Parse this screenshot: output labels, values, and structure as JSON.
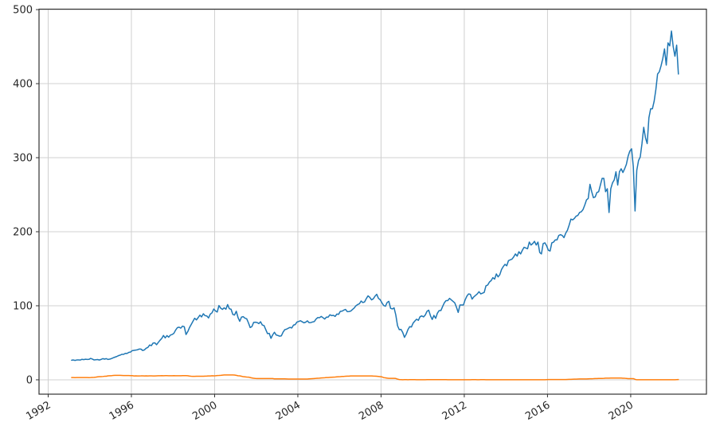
{
  "chart_data": {
    "type": "line",
    "title": "",
    "xlabel": "",
    "ylabel": "",
    "grid": true,
    "legend_position": "none",
    "x_axis": {
      "tick_years": [
        1992,
        1996,
        2000,
        2004,
        2008,
        2012,
        2016,
        2020
      ],
      "tick_labels": [
        "1992",
        "1996",
        "2000",
        "2004",
        "2008",
        "2012",
        "2016",
        "2020"
      ],
      "lim": [
        1991.56,
        2023.64
      ],
      "tick_rotation_deg": 30
    },
    "y_axis": {
      "ticks": [
        0,
        100,
        200,
        300,
        400,
        500
      ],
      "tick_labels": [
        "0",
        "100",
        "200",
        "300",
        "400",
        "500"
      ],
      "lim": [
        -19.4,
        500.6
      ]
    },
    "x_encoding": "values_by_year holds one value per month in order; 1993 starts in February, 2022 ends in April",
    "series": [
      {
        "name": "blue-line",
        "color": "#1f77b4",
        "values_by_year": {
          "1993": [
            26.4,
            26.8,
            26.2,
            26.8,
            26.8,
            26.7,
            27.7,
            27.3,
            27.8,
            27.5,
            27.6
          ],
          "1994": [
            28.9,
            28.0,
            26.8,
            27.1,
            27.4,
            26.7,
            27.5,
            28.6,
            27.9,
            28.6,
            27.5,
            27.9
          ],
          "1995": [
            28.7,
            29.7,
            30.6,
            31.4,
            32.6,
            33.3,
            34.4,
            34.4,
            35.7,
            35.6,
            37.1,
            37.5
          ],
          "1996": [
            39.4,
            39.8,
            40.1,
            40.5,
            41.5,
            41.5,
            39.6,
            40.4,
            42.6,
            43.7,
            47.0,
            46.1
          ],
          "1997": [
            49.6,
            50.0,
            47.4,
            50.4,
            53.4,
            55.9,
            59.9,
            56.6,
            59.7,
            57.6,
            60.4,
            61.2
          ],
          "1998": [
            62.8,
            67.1,
            70.4,
            71.1,
            69.8,
            72.5,
            71.7,
            61.2,
            65.0,
            70.5,
            74.7,
            79.0
          ],
          "1999": [
            83.2,
            80.9,
            84.0,
            87.3,
            85.0,
            89.2,
            86.6,
            86.3,
            83.5,
            88.7,
            90.5,
            95.6
          ],
          "2000": [
            93.0,
            91.5,
            100.3,
            96.7,
            95.1,
            97.2,
            95.3,
            101.6,
            96.0,
            95.3,
            88.2,
            87.5
          ],
          "2001": [
            92.6,
            84.1,
            79.0,
            84.7,
            85.3,
            83.2,
            82.4,
            77.0,
            70.6,
            71.9,
            77.5,
            77.8
          ],
          "2002": [
            77.4,
            75.9,
            78.4,
            74.0,
            73.3,
            67.8,
            62.4,
            62.7,
            56.0,
            60.7,
            64.2,
            60.5
          ],
          "2003": [
            59.9,
            58.9,
            59.4,
            64.4,
            67.8,
            68.4,
            69.7,
            70.8,
            70.0,
            73.9,
            74.6,
            78.0
          ],
          "2004": [
            78.8,
            79.8,
            78.4,
            77.0,
            77.8,
            79.6,
            77.1,
            77.3,
            78.1,
            78.7,
            82.0,
            84.1
          ],
          "2005": [
            83.9,
            85.6,
            83.9,
            82.1,
            84.7,
            84.7,
            87.8,
            86.7,
            87.1,
            85.6,
            88.8,
            88.4
          ],
          "2006": [
            92.5,
            92.7,
            94.1,
            95.1,
            92.1,
            92.2,
            92.8,
            94.9,
            96.9,
            100.0,
            101.6,
            102.7
          ],
          "2007": [
            106.4,
            104.3,
            105.2,
            109.7,
            113.4,
            111.3,
            108.0,
            109.3,
            112.9,
            115.5,
            110.0,
            108.2
          ],
          "2008": [
            104.0,
            100.4,
            99.3,
            104.4,
            106.0,
            96.6,
            95.7,
            97.2,
            87.6,
            73.1,
            67.7,
            68.1
          ],
          "2009": [
            64.0,
            57.3,
            61.6,
            67.7,
            71.7,
            71.3,
            76.6,
            79.4,
            81.8,
            80.3,
            85.2,
            86.3
          ],
          "2010": [
            85.0,
            87.5,
            92.5,
            94.0,
            86.5,
            81.5,
            87.0,
            83.0,
            90.0,
            93.5,
            93.5,
            99.0
          ],
          "2011": [
            104.0,
            107.0,
            107.0,
            110.0,
            108.0,
            106.0,
            104.0,
            98.0,
            91.0,
            101.0,
            101.0,
            101.0
          ],
          "2012": [
            108.0,
            113.0,
            116.0,
            115.5,
            109.0,
            112.0,
            114.0,
            116.0,
            119.0,
            116.0,
            117.0,
            118.0
          ],
          "2013": [
            127.0,
            128.0,
            132.0,
            134.0,
            138.0,
            136.0,
            143.0,
            139.0,
            142.0,
            149.0,
            153.0,
            156.0
          ],
          "2014": [
            154.0,
            161.0,
            162.0,
            163.0,
            166.0,
            170.0,
            167.0,
            173.0,
            170.0,
            175.0,
            179.0,
            178.0
          ],
          "2015": [
            177.0,
            186.0,
            182.0,
            184.0,
            187.0,
            182.0,
            186.0,
            172.0,
            170.0,
            184.0,
            185.0,
            181.0
          ],
          "2016": [
            175.0,
            174.0,
            185.0,
            186.0,
            189.0,
            189.0,
            195.0,
            196.0,
            195.0,
            192.0,
            198.0,
            202.0
          ],
          "2017": [
            209.0,
            217.0,
            216.0,
            218.0,
            221.0,
            222.0,
            226.0,
            227.0,
            230.0,
            236.0,
            243.0,
            245.0
          ],
          "2018": [
            264.0,
            254.0,
            246.0,
            247.0,
            253.0,
            254.0,
            263.0,
            272.0,
            272.0,
            254.0,
            258.0,
            226.0
          ],
          "2019": [
            258.0,
            266.0,
            270.0,
            281.0,
            263.0,
            281.0,
            285.0,
            280.0,
            285.0,
            291.0,
            302.0,
            309.0
          ],
          "2020": [
            312.0,
            288.0,
            228.0,
            283.0,
            296.0,
            301.0,
            319.0,
            341.0,
            327.0,
            319.0,
            354.0,
            366.0
          ],
          "2021": [
            366.0,
            376.0,
            392.0,
            413.0,
            416.0,
            424.0,
            434.0,
            447.0,
            425.0,
            455.0,
            451.0,
            471.0
          ],
          "2022": [
            450.0,
            437.0,
            452.0,
            413.0
          ]
        }
      },
      {
        "name": "orange-line",
        "color": "#ff7f0e",
        "values_by_year": {
          "1993": [
            3.03,
            3.07,
            2.96,
            3.0,
            3.04,
            3.06,
            3.03,
            3.09,
            2.99,
            3.02,
            2.96
          ],
          "1994": [
            3.05,
            3.25,
            3.34,
            3.56,
            4.01,
            4.25,
            4.26,
            4.47,
            4.73,
            4.76,
            5.29,
            5.45
          ],
          "1995": [
            5.53,
            5.92,
            5.98,
            6.05,
            6.01,
            6.0,
            5.85,
            5.74,
            5.8,
            5.76,
            5.8,
            5.6
          ],
          "1996": [
            5.56,
            5.22,
            5.31,
            5.22,
            5.24,
            5.27,
            5.4,
            5.22,
            5.3,
            5.24,
            5.31,
            5.29
          ],
          "1997": [
            5.25,
            5.19,
            5.39,
            5.51,
            5.5,
            5.56,
            5.52,
            5.54,
            5.54,
            5.5,
            5.52,
            5.5
          ],
          "1998": [
            5.56,
            5.51,
            5.49,
            5.45,
            5.49,
            5.56,
            5.54,
            5.55,
            5.51,
            5.07,
            4.83,
            4.68
          ],
          "1999": [
            4.63,
            4.76,
            4.81,
            4.74,
            4.74,
            4.76,
            4.99,
            5.07,
            5.22,
            5.2,
            5.42,
            5.3
          ],
          "2000": [
            5.45,
            5.73,
            5.85,
            6.02,
            6.27,
            6.53,
            6.54,
            6.5,
            6.52,
            6.51,
            6.51,
            6.4
          ],
          "2001": [
            5.98,
            5.49,
            5.31,
            4.8,
            4.21,
            3.97,
            3.77,
            3.65,
            3.07,
            2.49,
            2.09,
            1.82
          ],
          "2002": [
            1.73,
            1.74,
            1.73,
            1.75,
            1.75,
            1.75,
            1.73,
            1.74,
            1.75,
            1.75,
            1.34,
            1.24
          ],
          "2003": [
            1.24,
            1.26,
            1.25,
            1.26,
            1.26,
            1.22,
            1.01,
            1.03,
            1.01,
            1.01,
            1.0,
            0.98
          ],
          "2004": [
            1.0,
            1.01,
            1.0,
            1.0,
            1.0,
            1.03,
            1.26,
            1.43,
            1.61,
            1.76,
            1.93,
            2.16
          ],
          "2005": [
            2.28,
            2.5,
            2.63,
            2.79,
            3.0,
            3.04,
            3.26,
            3.5,
            3.62,
            3.78,
            4.0,
            4.16
          ],
          "2006": [
            4.29,
            4.49,
            4.59,
            4.79,
            4.94,
            4.99,
            5.24,
            5.25,
            5.25,
            5.25,
            5.25,
            5.24
          ],
          "2007": [
            5.25,
            5.26,
            5.26,
            5.25,
            5.25,
            5.25,
            5.26,
            5.02,
            4.94,
            4.76,
            4.49,
            4.24
          ],
          "2008": [
            3.94,
            2.98,
            2.61,
            2.28,
            1.98,
            2.0,
            2.01,
            2.0,
            1.81,
            0.97,
            0.39,
            0.16
          ],
          "2009": [
            0.15,
            0.22,
            0.18,
            0.15,
            0.18,
            0.21,
            0.16,
            0.16,
            0.15,
            0.12,
            0.12,
            0.12
          ],
          "2010": [
            0.11,
            0.13,
            0.16,
            0.2,
            0.2,
            0.18,
            0.18,
            0.19,
            0.19,
            0.19,
            0.19,
            0.18
          ],
          "2011": [
            0.17,
            0.16,
            0.14,
            0.1,
            0.09,
            0.09,
            0.07,
            0.1,
            0.08,
            0.07,
            0.08,
            0.07
          ],
          "2012": [
            0.08,
            0.1,
            0.13,
            0.14,
            0.16,
            0.16,
            0.16,
            0.13,
            0.14,
            0.16,
            0.16,
            0.16
          ],
          "2013": [
            0.14,
            0.15,
            0.14,
            0.15,
            0.11,
            0.09,
            0.09,
            0.08,
            0.08,
            0.09,
            0.08,
            0.09
          ],
          "2014": [
            0.07,
            0.07,
            0.08,
            0.09,
            0.09,
            0.1,
            0.09,
            0.09,
            0.09,
            0.09,
            0.09,
            0.12
          ],
          "2015": [
            0.11,
            0.11,
            0.11,
            0.12,
            0.12,
            0.13,
            0.13,
            0.14,
            0.14,
            0.12,
            0.12,
            0.24
          ],
          "2016": [
            0.34,
            0.38,
            0.36,
            0.37,
            0.37,
            0.38,
            0.39,
            0.4,
            0.4,
            0.4,
            0.41,
            0.54
          ],
          "2017": [
            0.65,
            0.66,
            0.79,
            0.9,
            0.91,
            1.04,
            1.15,
            1.16,
            1.15,
            1.15,
            1.16,
            1.3
          ],
          "2018": [
            1.41,
            1.42,
            1.51,
            1.69,
            1.7,
            1.82,
            1.91,
            1.91,
            1.95,
            2.19,
            2.2,
            2.27
          ],
          "2019": [
            2.4,
            2.4,
            2.41,
            2.42,
            2.39,
            2.38,
            2.4,
            2.13,
            2.04,
            1.83,
            1.55,
            1.55
          ],
          "2020": [
            1.55,
            1.58,
            0.65,
            0.05,
            0.05,
            0.08,
            0.09,
            0.1,
            0.09,
            0.09,
            0.09,
            0.09
          ],
          "2021": [
            0.09,
            0.08,
            0.07,
            0.07,
            0.06,
            0.08,
            0.1,
            0.09,
            0.08,
            0.08,
            0.08,
            0.08
          ],
          "2022": [
            0.08,
            0.08,
            0.2,
            0.33
          ]
        }
      }
    ],
    "style": {
      "grid_color": "#d0d0d0",
      "spine_color": "#333333",
      "tick_color": "#333333",
      "tick_label_color": "#262626",
      "background": "#ffffff",
      "line_width": 1.5,
      "tick_font_size": 13
    }
  }
}
